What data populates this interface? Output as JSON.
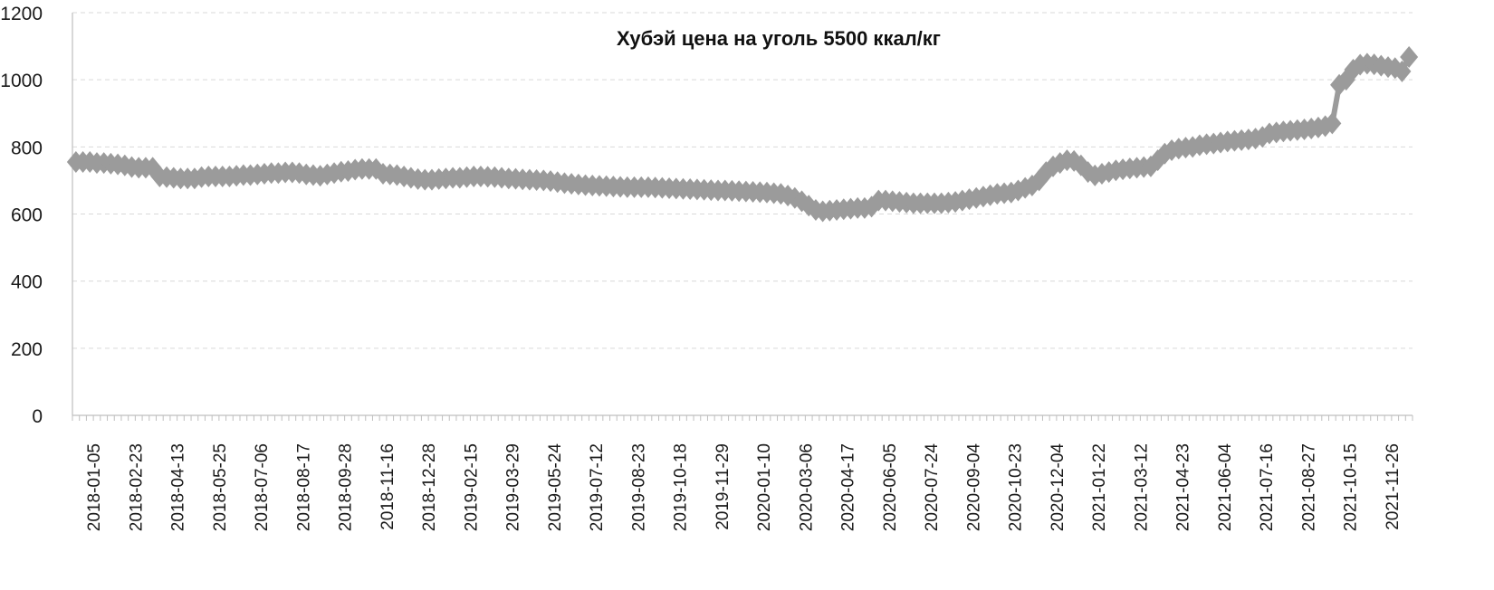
{
  "chart_data": {
    "type": "line",
    "title": "Хубэй цена на уголь 5500 ккал/кг",
    "xlabel": "",
    "ylabel": "",
    "ylim": [
      0,
      1200
    ],
    "yticks": [
      "0",
      "200",
      "400",
      "600",
      "800",
      "1000",
      "1200"
    ],
    "grid": true,
    "legend": "none",
    "colors": {
      "series": "#9b9b9b",
      "axis": "#bfbfbf",
      "grid": "#d9d9d9",
      "text": "#1a1a1a"
    },
    "marker": "diamond",
    "x_tick_labels": [
      "2018-01-05",
      "2018-02-23",
      "2018-04-13",
      "2018-05-25",
      "2018-07-06",
      "2018-08-17",
      "2018-09-28",
      "2018-11-16",
      "2018-12-28",
      "2019-02-15",
      "2019-03-29",
      "2019-05-24",
      "2019-07-12",
      "2019-08-23",
      "2019-10-18",
      "2019-11-29",
      "2020-01-10",
      "2020-03-06",
      "2020-04-17",
      "2020-06-05",
      "2020-07-24",
      "2020-09-04",
      "2020-10-23",
      "2020-12-04",
      "2021-01-22",
      "2021-03-12",
      "2021-04-23",
      "2021-06-04",
      "2021-07-16",
      "2021-08-27",
      "2021-10-15",
      "2021-11-26"
    ],
    "series": [
      {
        "values": [
          755,
          755,
          755,
          752,
          752,
          750,
          748,
          745,
          740,
          738,
          738,
          738,
          712,
          710,
          708,
          706,
          706,
          706,
          710,
          712,
          712,
          712,
          712,
          714,
          716,
          716,
          718,
          720,
          722,
          722,
          724,
          724,
          722,
          718,
          716,
          714,
          718,
          722,
          726,
          728,
          732,
          734,
          734,
          734,
          720,
          718,
          716,
          712,
          708,
          704,
          702,
          702,
          704,
          706,
          708,
          708,
          710,
          712,
          712,
          711,
          710,
          708,
          706,
          705,
          703,
          702,
          701,
          700,
          698,
          695,
          692,
          690,
          688,
          686,
          685,
          684,
          683,
          682,
          681,
          680,
          680,
          680,
          680,
          679,
          678,
          677,
          676,
          675,
          674,
          673,
          672,
          671,
          670,
          670,
          669,
          668,
          667,
          666,
          665,
          664,
          662,
          660,
          655,
          648,
          638,
          625,
          612,
          608,
          610,
          612,
          614,
          616,
          618,
          618,
          622,
          640,
          640,
          638,
          636,
          634,
          632,
          632,
          632,
          632,
          632,
          634,
          636,
          640,
          644,
          648,
          652,
          656,
          660,
          662,
          664,
          670,
          678,
          685,
          700,
          725,
          742,
          752,
          760,
          758,
          745,
          725,
          715,
          720,
          725,
          730,
          733,
          736,
          738,
          740,
          742,
          760,
          780,
          790,
          795,
          798,
          800,
          805,
          808,
          810,
          813,
          816,
          818,
          820,
          822,
          825,
          830,
          840,
          843,
          846,
          848,
          850,
          852,
          855,
          858,
          862,
          870,
          985,
          1000,
          1030,
          1045,
          1048,
          1046,
          1042,
          1038,
          1035,
          1025,
          1068
        ]
      }
    ]
  }
}
